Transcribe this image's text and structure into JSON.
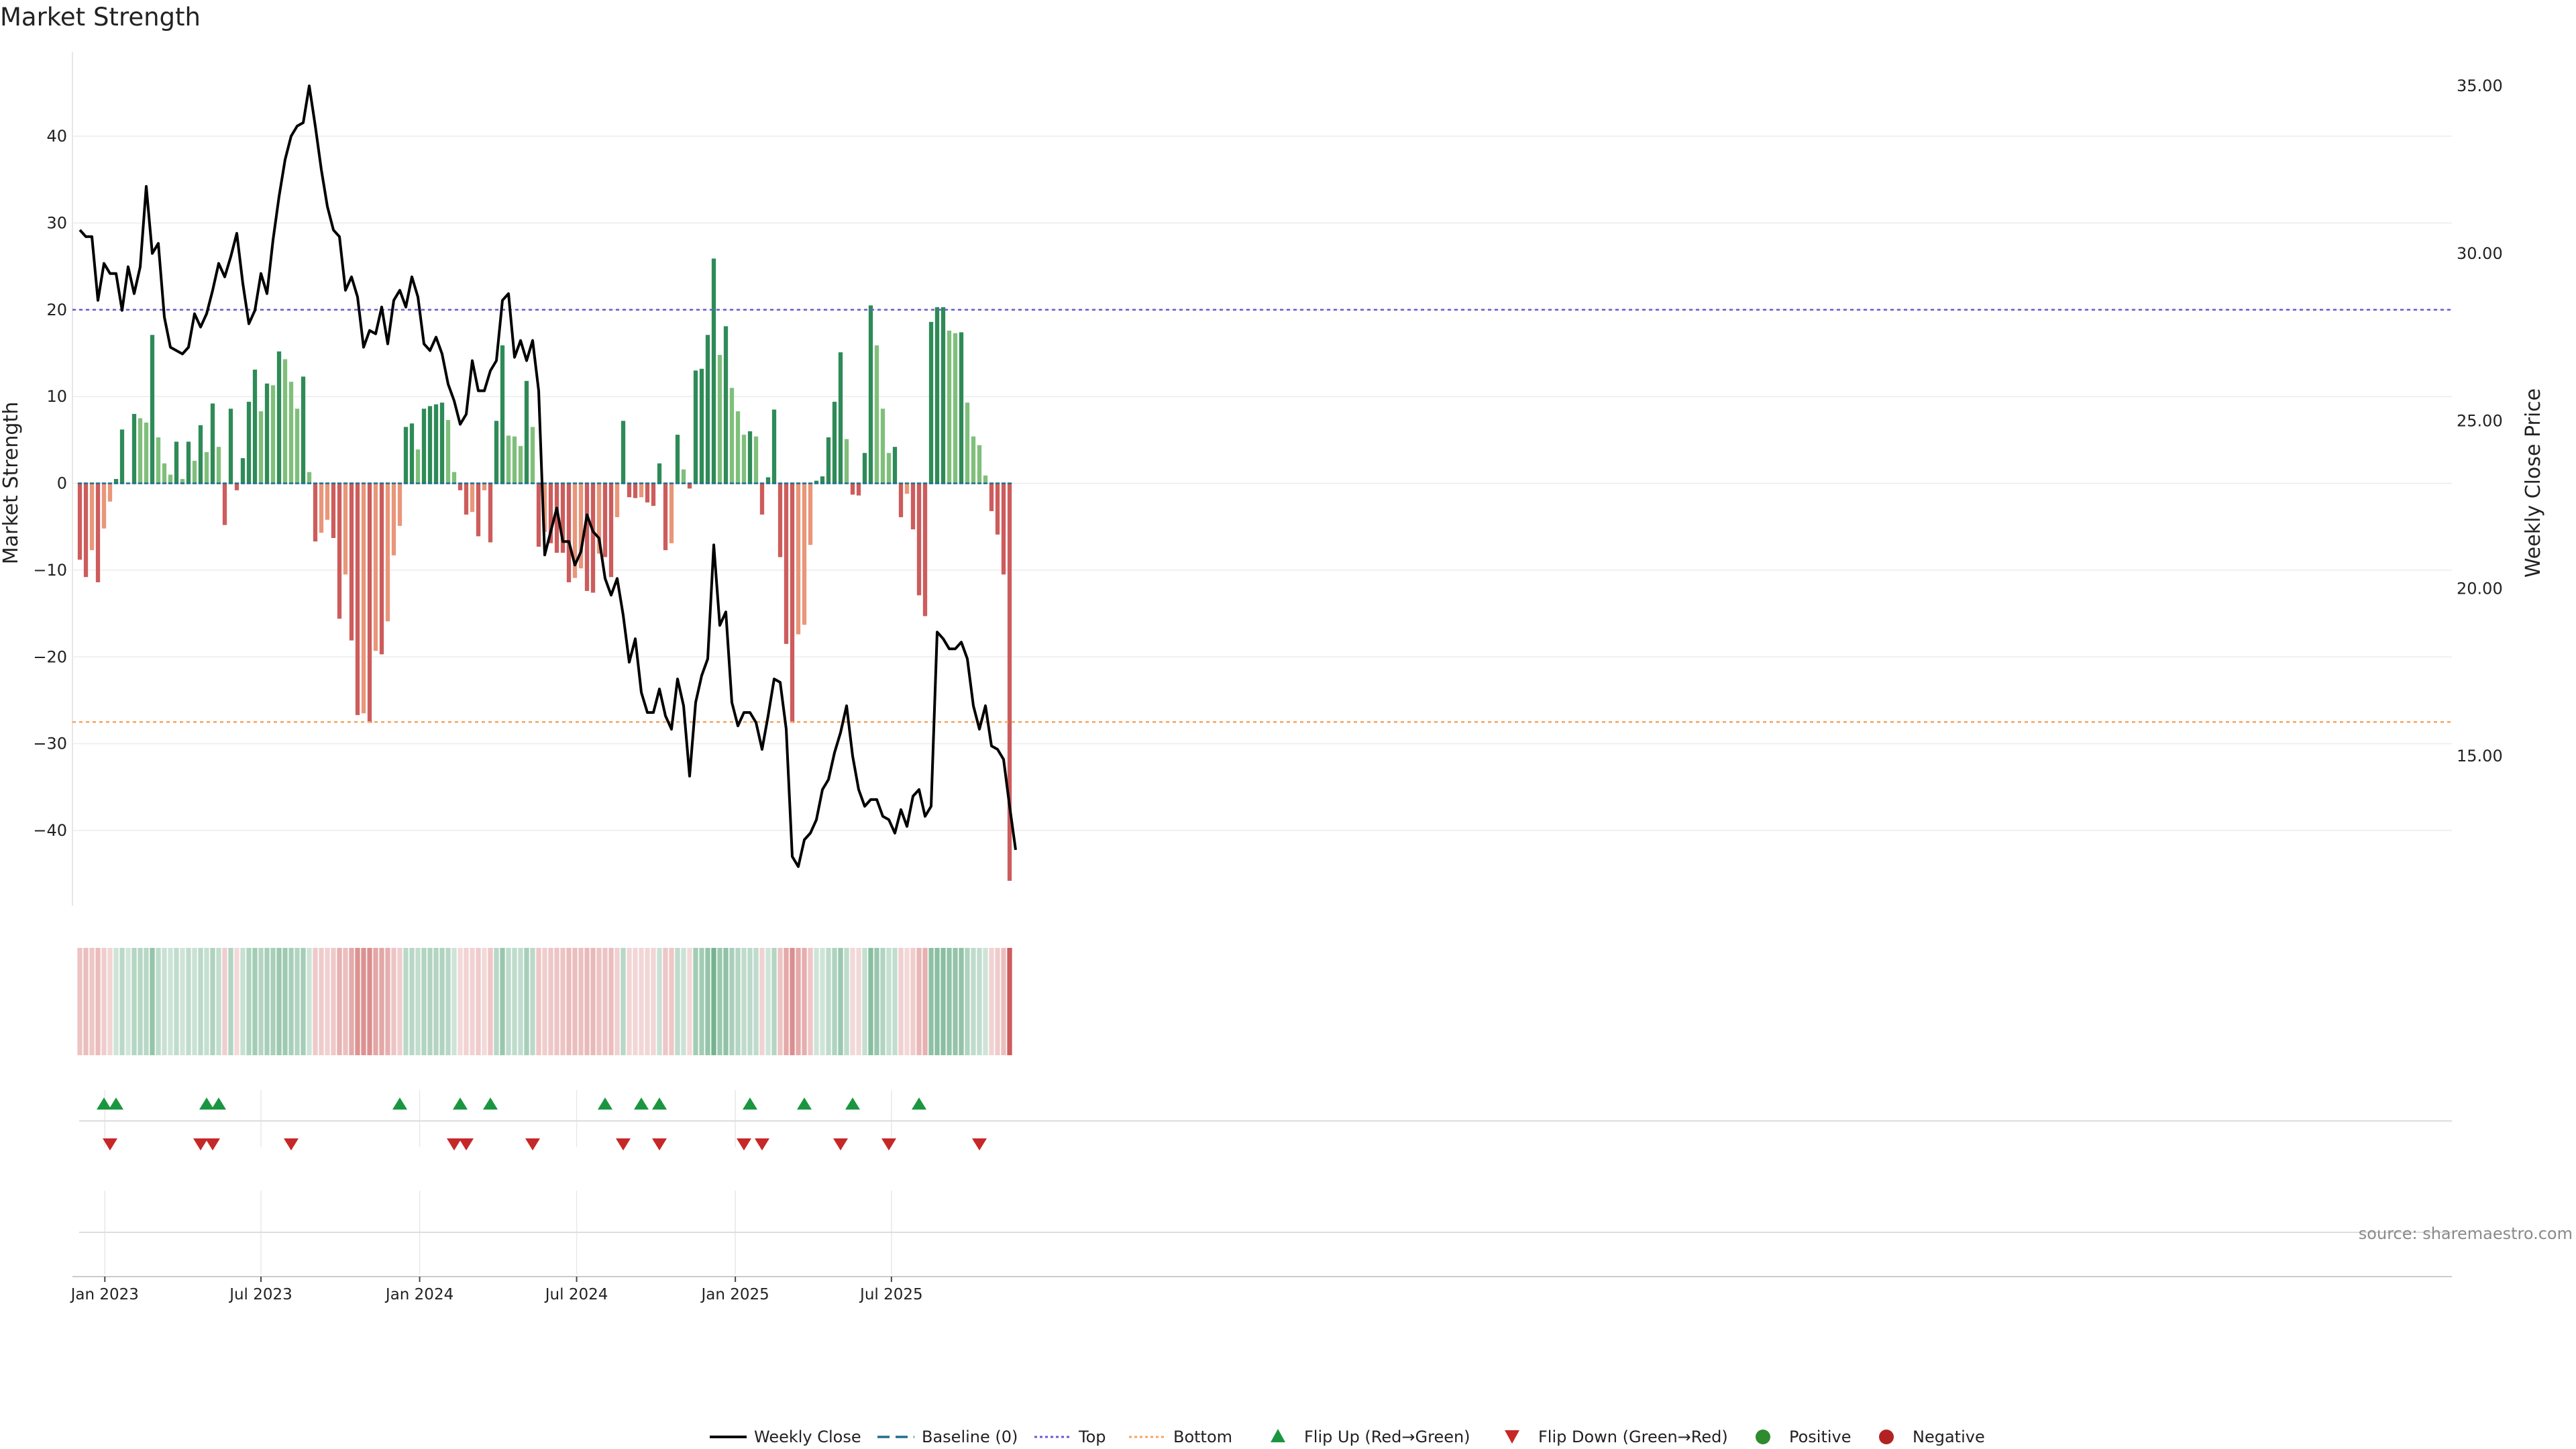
{
  "title": "Market Strength",
  "source_note": "source: sharemaestro.com",
  "colors": {
    "strong_green": "#2e8b57",
    "light_green": "#7fbf7b",
    "strong_red": "#cd5c5c",
    "light_red": "#e9967a",
    "price_line": "#000000",
    "baseline": "#1f6f8b",
    "top_line": "#6a5acd",
    "bottom_line": "#f4a460",
    "flip_up": "#1a9641",
    "flip_down": "#c62828"
  },
  "legend": [
    {
      "label": "Weekly Close",
      "symbol": "line",
      "color": "#000000"
    },
    {
      "label": "Baseline (0)",
      "symbol": "dash",
      "color": "#1f6f8b"
    },
    {
      "label": "Top",
      "symbol": "dot",
      "color": "#6a5acd"
    },
    {
      "label": "Bottom",
      "symbol": "dot",
      "color": "#f4a460"
    },
    {
      "label": "Flip Up (Red→Green)",
      "symbol": "tri-up",
      "color": "#1a9641"
    },
    {
      "label": "Flip Down (Green→Red)",
      "symbol": "tri-down",
      "color": "#c62828"
    },
    {
      "label": "Positive",
      "symbol": "circle",
      "color": "#2e8b2e"
    },
    {
      "label": "Negative",
      "symbol": "circle",
      "color": "#b22222"
    }
  ],
  "chart_data": {
    "type": "bar+line",
    "start_date": "2022-12-03",
    "interval_days": 7,
    "x_ticks": [
      "Jan 2023",
      "Jul 2023",
      "Jan 2024",
      "Jul 2024",
      "Jan 2025",
      "Jul 2025"
    ],
    "x_tick_dates": [
      "2023-01-01",
      "2023-07-01",
      "2024-01-01",
      "2024-07-01",
      "2025-01-01",
      "2025-07-01"
    ],
    "y_left": {
      "label": "Market Strength",
      "range": [
        -49,
        50
      ],
      "ticks": [
        -40,
        -30,
        -20,
        -10,
        0,
        10,
        20,
        30,
        40
      ]
    },
    "y_right": {
      "label": "Weekly Close Price",
      "range": [
        10.3,
        35.5
      ],
      "ticks": [
        "15.00",
        "20.00",
        "25.00",
        "30.00",
        "35.00"
      ]
    },
    "top_threshold": 20,
    "bottom_threshold": -27.5,
    "strength": [
      -8.8,
      -10.8,
      -7.7,
      -11.4,
      -5.2,
      -2.1,
      0.5,
      6.2,
      0,
      8,
      7.5,
      7,
      17.1,
      5.3,
      2.3,
      1,
      4.8,
      0.5,
      4.8,
      2.6,
      6.7,
      3.6,
      9.2,
      4.2,
      -4.8,
      8.6,
      -0.8,
      2.9,
      9.4,
      13.1,
      8.3,
      11.5,
      11.3,
      15.2,
      14.3,
      11.7,
      8.6,
      12.3,
      1.3,
      -6.7,
      -5.7,
      -4.2,
      -6.3,
      -15.6,
      -10.5,
      -18.1,
      -26.7,
      -26.5,
      -27.6,
      -19.3,
      -19.7,
      -15.9,
      -8.3,
      -4.9,
      6.5,
      6.9,
      3.9,
      8.6,
      8.9,
      9.1,
      9.3,
      7.3,
      1.3,
      -0.8,
      -3.6,
      -3.3,
      -6.1,
      -0.8,
      -6.8,
      7.2,
      15.9,
      5.5,
      5.4,
      4.3,
      11.8,
      6.5,
      -7.3,
      -5.6,
      -6.9,
      -8,
      -8,
      -11.4,
      -10.9,
      -9.8,
      -12.4,
      -12.6,
      -8.1,
      -8.5,
      -10.8,
      -3.9,
      7.2,
      -1.6,
      -1.7,
      -1.6,
      -2.2,
      -2.6,
      2.3,
      -7.7,
      -6.9,
      5.6,
      1.6,
      -0.6,
      13,
      13.2,
      17.1,
      25.9,
      14.8,
      18.1,
      11,
      8.3,
      5.6,
      6,
      5.4,
      -3.6,
      0.7,
      8.5,
      -8.5,
      -18.5,
      -27.6,
      -17.4,
      -16.3,
      -7.1,
      0.3,
      0.8,
      5.3,
      9.4,
      15.1,
      5.1,
      -1.3,
      -1.4,
      3.5,
      20.5,
      15.9,
      8.6,
      3.5,
      4.2,
      -3.9,
      -1.2,
      -5.3,
      -12.9,
      -15.3,
      18.6,
      20.3,
      20.3,
      17.6,
      17.3,
      17.4,
      9.3,
      5.4,
      4.4,
      0.9,
      -3.2,
      -5.9,
      -10.5,
      -45.8
    ],
    "weekly_close": [
      30.7,
      30.5,
      30.5,
      28.6,
      29.7,
      29.4,
      29.4,
      28.3,
      29.6,
      28.8,
      29.6,
      32.0,
      30.0,
      30.3,
      28.1,
      27.2,
      27.1,
      27.0,
      27.2,
      28.2,
      27.8,
      28.2,
      28.9,
      29.7,
      29.3,
      29.9,
      30.6,
      29.1,
      27.9,
      28.3,
      29.4,
      28.8,
      30.4,
      31.7,
      32.8,
      33.5,
      33.8,
      33.9,
      35.0,
      33.8,
      32.5,
      31.4,
      30.7,
      30.5,
      28.9,
      29.3,
      28.7,
      27.2,
      27.7,
      27.6,
      28.4,
      27.3,
      28.6,
      28.9,
      28.4,
      29.3,
      28.7,
      27.3,
      27.1,
      27.5,
      27.0,
      26.1,
      25.6,
      24.9,
      25.2,
      26.8,
      25.9,
      25.9,
      26.5,
      26.8,
      28.6,
      28.8,
      26.9,
      27.4,
      26.8,
      27.4,
      25.9,
      21.0,
      21.7,
      22.4,
      21.4,
      21.4,
      20.7,
      21.1,
      22.2,
      21.7,
      21.5,
      20.3,
      19.8,
      20.3,
      19.2,
      17.8,
      18.5,
      16.9,
      16.3,
      16.3,
      17.0,
      16.2,
      15.8,
      17.3,
      16.5,
      14.4,
      16.6,
      17.4,
      17.9,
      21.3,
      18.9,
      19.3,
      16.6,
      15.9,
      16.3,
      16.3,
      16.0,
      15.2,
      16.2,
      17.3,
      17.2,
      15.8,
      12.0,
      11.7,
      12.5,
      12.7,
      13.1,
      14.0,
      14.3,
      15.1,
      15.7,
      16.5,
      15.0,
      14.0,
      13.5,
      13.7,
      13.7,
      13.2,
      13.1,
      12.7,
      13.4,
      12.9,
      13.8,
      14.0,
      13.2,
      13.5,
      18.7,
      18.5,
      18.2,
      18.2,
      18.4,
      17.9,
      16.5,
      15.8,
      16.5,
      15.3,
      15.2,
      14.9,
      13.5,
      12.2
    ],
    "flip_up_dates": [
      "2022-12-31",
      "2023-01-14",
      "2023-04-29",
      "2023-05-13",
      "2023-12-09",
      "2024-02-17",
      "2024-03-23",
      "2024-08-03",
      "2024-09-14",
      "2024-10-05",
      "2025-01-18",
      "2025-03-22",
      "2025-05-17",
      "2025-08-02"
    ],
    "flip_down_dates": [
      "2023-01-07",
      "2023-04-22",
      "2023-05-06",
      "2023-08-05",
      "2024-02-10",
      "2024-02-24",
      "2024-05-11",
      "2024-08-24",
      "2024-10-05",
      "2025-01-11",
      "2025-02-01",
      "2025-05-03",
      "2025-06-28",
      "2025-10-11"
    ]
  }
}
